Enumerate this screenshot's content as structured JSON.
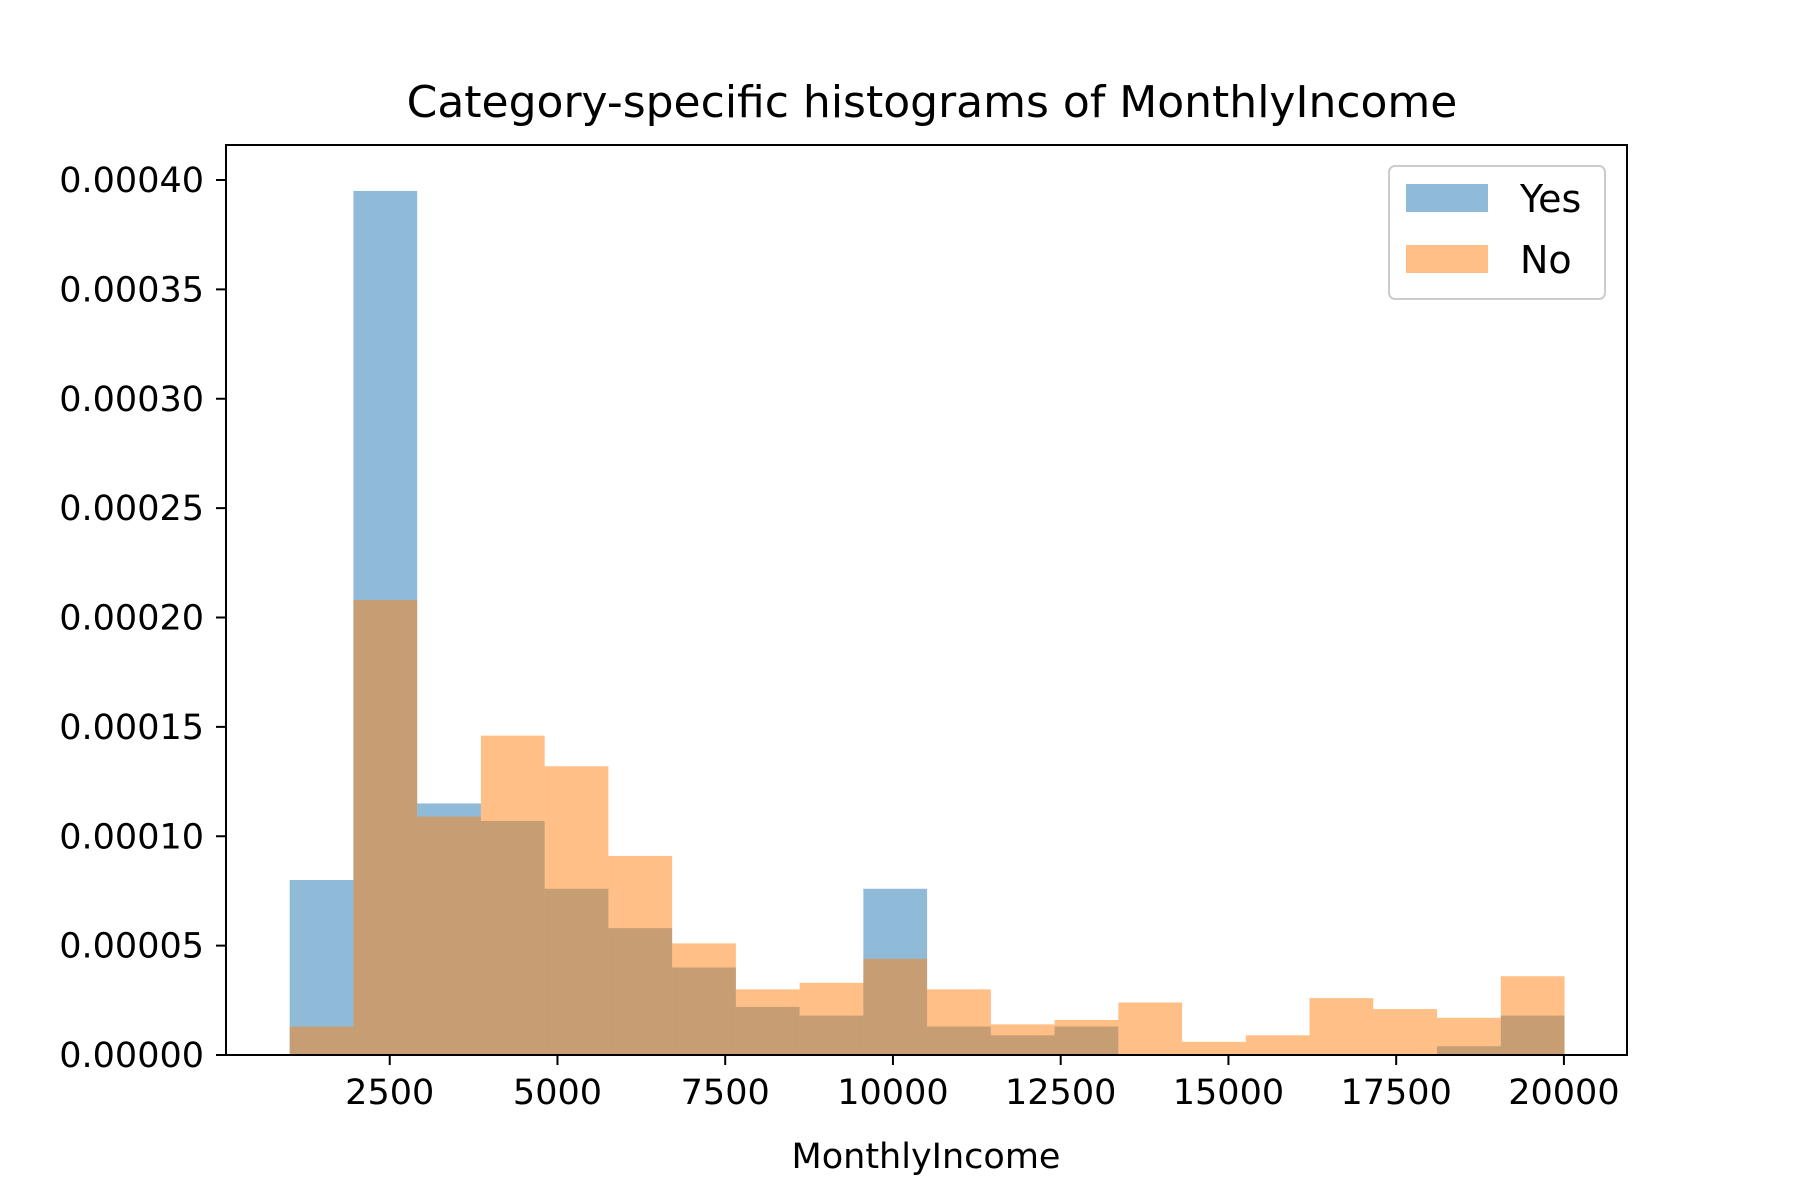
{
  "chart_data": {
    "type": "histogram",
    "title": "Category-specific histograms of MonthlyIncome",
    "xlabel": "MonthlyIncome",
    "ylabel": "",
    "xlim": [
      60,
      20940
    ],
    "ylim": [
      0,
      0.000416
    ],
    "x_ticks": [
      2500,
      5000,
      7500,
      10000,
      12500,
      15000,
      17500,
      20000
    ],
    "y_ticks": [
      0.0,
      5e-05,
      0.0001,
      0.00015,
      0.0002,
      0.00025,
      0.0003,
      0.00035,
      0.0004
    ],
    "y_tick_labels": [
      "0.00000",
      "0.00005",
      "0.00010",
      "0.00015",
      "0.00020",
      "0.00025",
      "0.00030",
      "0.00035",
      "0.00040"
    ],
    "bin_edges": [
      1009,
      1959,
      2909,
      3859,
      4809,
      5759,
      6709,
      7659,
      8609,
      9559,
      10509,
      11459,
      12409,
      13359,
      14309,
      15259,
      16209,
      17159,
      18109,
      19059,
      20009
    ],
    "series": [
      {
        "name": "Yes",
        "color": "#1f77b4",
        "values": [
          8e-05,
          0.000395,
          0.000115,
          0.000107,
          7.6e-05,
          5.8e-05,
          4e-05,
          2.2e-05,
          1.8e-05,
          7.6e-05,
          1.3e-05,
          9e-06,
          1.3e-05,
          0.0,
          0.0,
          0.0,
          0.0,
          0.0,
          4e-06,
          1.8e-05
        ]
      },
      {
        "name": "No",
        "color": "#ff7f0e",
        "values": [
          1.3e-05,
          0.000208,
          0.000109,
          0.000146,
          0.000132,
          9.1e-05,
          5.1e-05,
          3e-05,
          3.3e-05,
          4.4e-05,
          3e-05,
          1.4e-05,
          1.6e-05,
          2.4e-05,
          6e-06,
          9e-06,
          2.6e-05,
          2.1e-05,
          1.7e-05,
          3.6e-05
        ]
      }
    ],
    "legend": {
      "position": "upper-right"
    },
    "grid": false
  }
}
